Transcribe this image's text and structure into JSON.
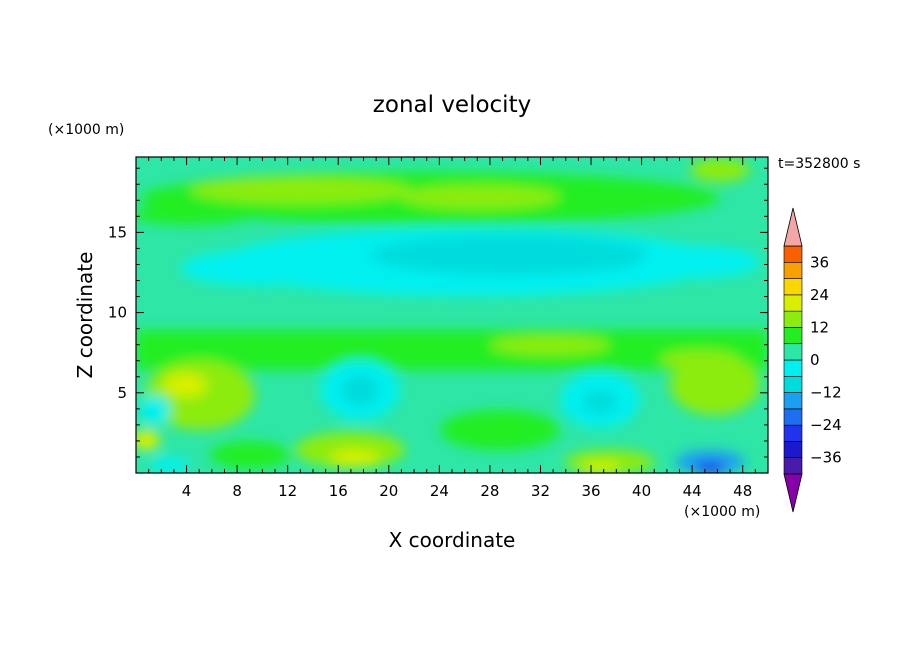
{
  "chart_data": {
    "type": "heatmap",
    "title": "zonal velocity",
    "xlabel": "X coordinate",
    "ylabel": "Z coordinate",
    "x_unit": "(×1000 m)",
    "y_unit": "(×1000 m)",
    "time_label": "t=352800 s",
    "xlim": [
      0,
      50
    ],
    "ylim": [
      0,
      19.7
    ],
    "x_ticks": [
      4,
      8,
      12,
      16,
      20,
      24,
      28,
      32,
      36,
      40,
      44,
      48
    ],
    "y_ticks": [
      5,
      10,
      15
    ],
    "colorbar": {
      "levels": [
        -42,
        -36,
        -30,
        -24,
        -18,
        -12,
        -6,
        0,
        6,
        12,
        18,
        24,
        30,
        36,
        42
      ],
      "tick_labels": [
        -36,
        -24,
        -12,
        0,
        12,
        24,
        36
      ],
      "colors": [
        "#4a1aa8",
        "#1a1acc",
        "#2233ee",
        "#1e6ef0",
        "#1aa0f0",
        "#00dcdc",
        "#00f0f0",
        "#2ee6a6",
        "#22ee22",
        "#8cec10",
        "#d8f000",
        "#f8d800",
        "#f8a000",
        "#f86000",
        "#f02020"
      ],
      "under_color": "#8800aa",
      "over_color": "#f4a6a6",
      "extend": "both"
    },
    "grid": false
  }
}
